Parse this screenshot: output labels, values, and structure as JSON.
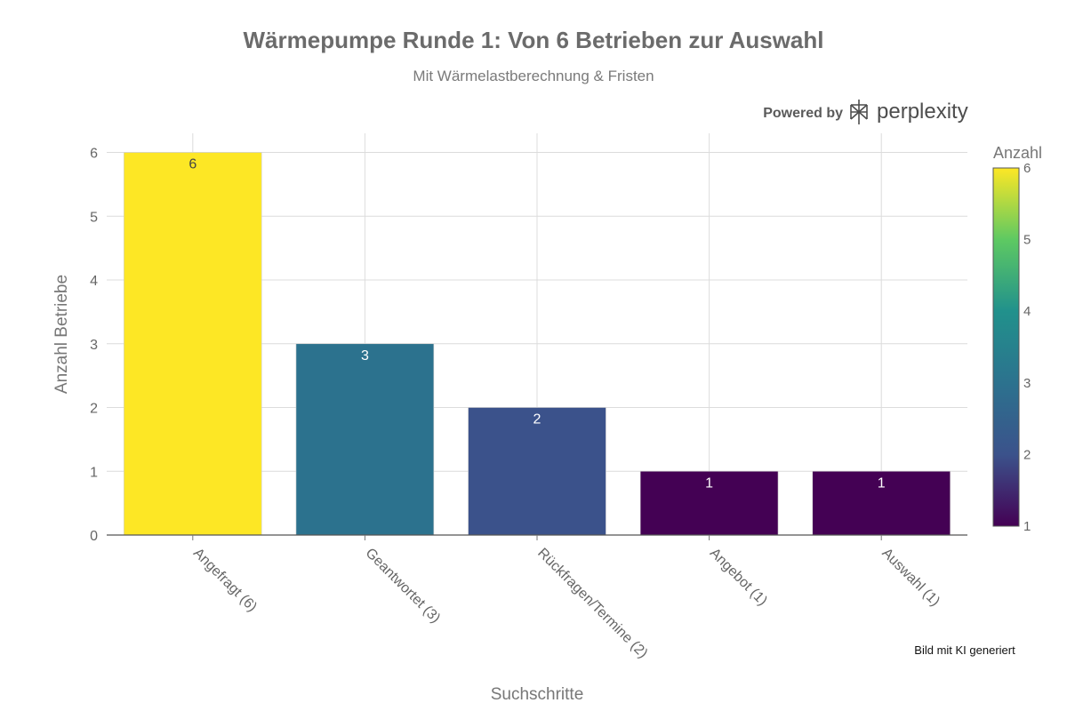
{
  "chart_data": {
    "type": "bar",
    "title": "Wärmepumpe Runde 1: Von 6 Betrieben zur Auswahl",
    "subtitle": "Mit Wärmelastberechnung & Fristen",
    "categories": [
      "Angefragt (6)",
      "Geantwortet (3)",
      "Rückfragen/Termine (2)",
      "Angebot (1)",
      "Auswahl (1)"
    ],
    "values": [
      6,
      3,
      2,
      1,
      1
    ],
    "data_labels": [
      "6",
      "3",
      "2",
      "1",
      "1"
    ],
    "xlabel": "Suchschritte",
    "ylabel": "Anzahl Betriebe",
    "ylim": [
      0,
      6.3
    ],
    "yticks": [
      0,
      1,
      2,
      3,
      4,
      5,
      6
    ],
    "grid": true,
    "colorscale": "viridis",
    "colorbar": {
      "title": "Anzahl",
      "range": [
        1,
        6
      ],
      "ticks": [
        1,
        2,
        3,
        4,
        5,
        6
      ],
      "placement": "right"
    }
  },
  "branding": {
    "powered_by": "Powered by",
    "brand_name": "perplexity",
    "logo_icon": "perplexity-logo-icon"
  },
  "footnote": "Bild mit KI generiert"
}
